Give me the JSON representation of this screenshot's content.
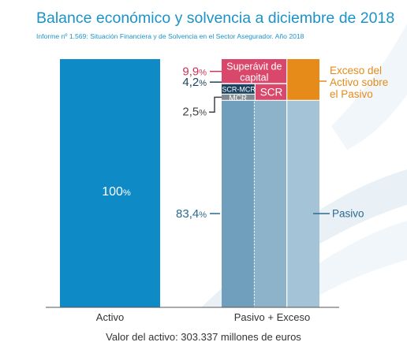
{
  "header": {
    "title": "Balance económico y solvencia a diciembre de 2018",
    "subtitle": "Informe nº 1.569: Situación Financiera y de Solvencia en el Sector Asegurador. Año 2018"
  },
  "footer": {
    "note": "Valor del activo: 303.337 millones de euros"
  },
  "chart_data": {
    "type": "bar",
    "stacked": true,
    "categories": [
      "Activo",
      "Pasivo + Exceso"
    ],
    "unit": "%",
    "ylim": [
      0,
      100
    ],
    "grid": false,
    "legend": "none",
    "bar_labels": {
      "activo": "100",
      "activo_unit": "%"
    },
    "segments": [
      {
        "key": "pasivo",
        "label": "Pasivo",
        "value": 83.4,
        "value_text": "83,4",
        "color": "#6f9fbd",
        "label_color": "#2b6a8f"
      },
      {
        "key": "mcr",
        "label": "MCR",
        "value": 2.5,
        "value_text": "2,5",
        "color": "#7f8a92",
        "label_color": "#444444"
      },
      {
        "key": "scr_mcr",
        "label": "SCR-MCR",
        "value": 4.2,
        "value_text": "4,2",
        "color": "#1c4462",
        "label_color": "#1c4462"
      },
      {
        "key": "superavit",
        "label": "Superávit de capital",
        "value": 9.9,
        "value_text": "9,9",
        "color": "#d9486b",
        "label_color": "#c8365a"
      }
    ],
    "scr_label": "SCR",
    "exceso_label": "Exceso del Activo sobre el Pasivo",
    "percent_sign": "%",
    "colors": {
      "activo": "#0e8ac6",
      "exceso": "#e68a1a",
      "pasivo_light": "#a4c3d6",
      "pasivo_mid": "#8db3cb",
      "text": "#333333"
    }
  }
}
